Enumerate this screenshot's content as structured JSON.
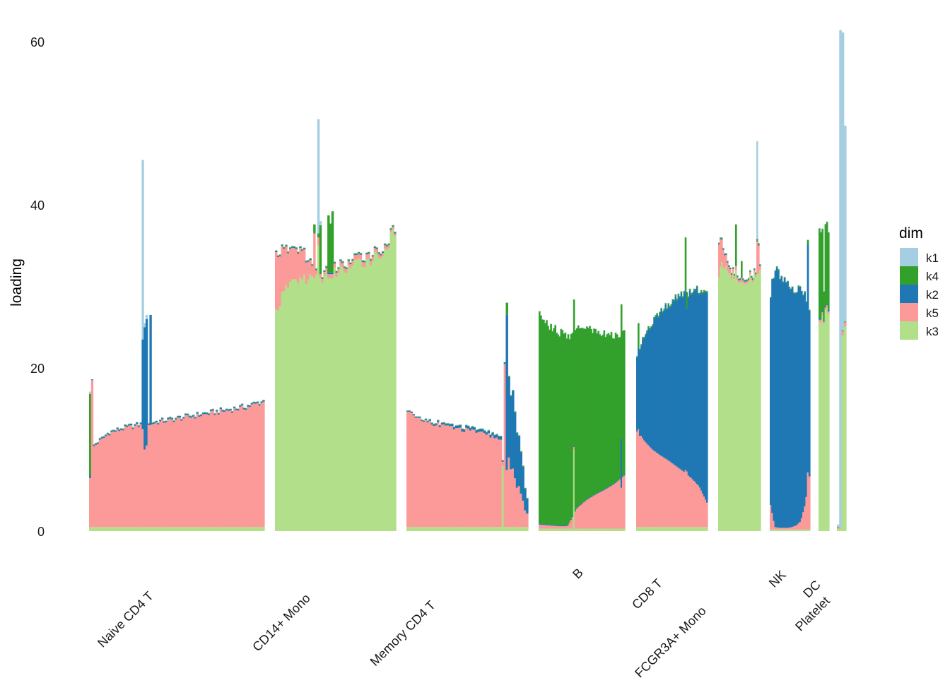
{
  "chart_data": {
    "type": "bar",
    "subtype": "stacked structure plot (one bar per sample, grouped by cell type)",
    "title": "",
    "xlabel": "",
    "ylabel": "loading",
    "ylim": [
      0,
      62
    ],
    "yticks": [
      0,
      20,
      40,
      60
    ],
    "grid": false,
    "legend": {
      "title": "dim",
      "placement": "right",
      "entries": [
        {
          "key": "k1",
          "label": "k1",
          "color": "#A6CEE3"
        },
        {
          "key": "k4",
          "label": "k4",
          "color": "#33A02C"
        },
        {
          "key": "k2",
          "label": "k2",
          "color": "#1F78B4"
        },
        {
          "key": "k5",
          "label": "k5",
          "color": "#FB9A99"
        },
        {
          "key": "k3",
          "label": "k3",
          "color": "#B2DF8A"
        }
      ]
    },
    "stack_order_bottom_to_top": [
      "k3",
      "k5",
      "k2",
      "k4",
      "k1"
    ],
    "groups": [
      {
        "name": "Naive CD4 T",
        "label_lines": [
          "Naive CD4 T"
        ],
        "n": 90,
        "k3": 0.5,
        "k5": [
          9.5,
          11.5,
          12.2,
          12.6,
          13.0,
          13.4,
          13.8,
          14.2,
          14.6,
          15.3
        ],
        "k2": 0.15,
        "k4": 0.05,
        "k1": 0.05,
        "spikes": [
          {
            "pos": 0.0,
            "k3": 0.5,
            "k5": 6.0,
            "k2": 0.3,
            "k4": 10.0,
            "k1": 0.3
          },
          {
            "pos": 0.01,
            "k3": 0.5,
            "k5": 18.0,
            "k2": 0.1,
            "k4": 0.0,
            "k1": 0.0
          },
          {
            "pos": 0.3,
            "k3": 0.5,
            "k5": 12.0,
            "k2": 11.0,
            "k4": 0.0,
            "k1": 22.0
          },
          {
            "pos": 0.315,
            "k3": 0.5,
            "k5": 9.5,
            "k2": 15.0,
            "k4": 0.0,
            "k1": 0.5
          },
          {
            "pos": 0.33,
            "k3": 0.5,
            "k5": 10.0,
            "k2": 15.5,
            "k4": 0.0,
            "k1": 0.5
          },
          {
            "pos": 0.345,
            "k3": 0.5,
            "k5": 12.5,
            "k2": 13.5,
            "k4": 0.0,
            "k1": 0.0
          }
        ]
      },
      {
        "name": "CD14+ Mono",
        "label_lines": [
          "CD14+ Mono"
        ],
        "n": 60,
        "k3": [
          27.0,
          30.5,
          31.0,
          30.8,
          31.5,
          32.0,
          32.6,
          33.3,
          34.0,
          36.5
        ],
        "k5": [
          7.0,
          4.0,
          3.5,
          0.5,
          0.5,
          0.5,
          0.6,
          0.6,
          0.4,
          0.3
        ],
        "k2": 0.1,
        "k4": 0.1,
        "k1": 0.05,
        "spikes": [
          {
            "pos": 0.33,
            "k3": 31.0,
            "k5": 5.5,
            "k2": 0.1,
            "k4": 1.0,
            "k1": 0.0
          },
          {
            "pos": 0.35,
            "k3": 35.0,
            "k5": 1.0,
            "k2": 0.0,
            "k4": 0.5,
            "k1": 14.0
          },
          {
            "pos": 0.365,
            "k3": 31.0,
            "k5": 0.5,
            "k2": 0.0,
            "k4": 6.0,
            "k1": 0.5
          },
          {
            "pos": 0.44,
            "k3": 31.0,
            "k5": 0.5,
            "k2": 0.2,
            "k4": 7.0,
            "k1": 0.0
          },
          {
            "pos": 0.455,
            "k3": 31.0,
            "k5": 0.5,
            "k2": 0.2,
            "k4": 6.0,
            "k1": 0.0
          },
          {
            "pos": 0.47,
            "k3": 31.0,
            "k5": 0.5,
            "k2": 0.2,
            "k4": 7.5,
            "k1": 0.0
          }
        ]
      },
      {
        "name": "Memory CD4 T",
        "label_lines": [
          "Memory CD4 T"
        ],
        "n": 60,
        "k3": 0.5,
        "k5": [
          14.0,
          13.2,
          12.7,
          12.3,
          12.0,
          11.7,
          11.3,
          10.8,
          10.0,
          9.0
        ],
        "k2": [
          0.1,
          0.1,
          0.2,
          0.2,
          0.3,
          0.3,
          0.3,
          0.4,
          0.5,
          0.6
        ],
        "k4": 0.05,
        "k1": 0.05,
        "tail_start": 0.81,
        "tail": {
          "k3": [
            0.5,
            0.5
          ],
          "k5": [
            10.0,
            1.5
          ],
          "k2": [
            13.0,
            2.0
          ],
          "k4": 0.1,
          "k1": 0.05
        },
        "spikes": [
          {
            "pos": 0.8,
            "k3": 8.0,
            "k5": 0.5,
            "k2": 0.2,
            "k4": 0.0,
            "k1": 0.0
          },
          {
            "pos": 0.815,
            "k3": 0.5,
            "k5": 20.0,
            "k2": 0.2,
            "k4": 0.0,
            "k1": 0.0
          },
          {
            "pos": 0.83,
            "k3": 0.5,
            "k5": 7.0,
            "k2": 19.0,
            "k4": 1.5,
            "k1": 0.0
          }
        ]
      },
      {
        "name": "B",
        "label_lines": [
          "B"
        ],
        "n": 60,
        "k3": 0.3,
        "k5": [
          0.5,
          0.4,
          0.3,
          0.3,
          2.5,
          3.5,
          4.2,
          4.8,
          5.5,
          6.5
        ],
        "k2": 0.1,
        "k4": [
          25.5,
          24.5,
          23.8,
          23.0,
          22.0,
          21.0,
          20.0,
          19.0,
          18.0,
          17.5
        ],
        "k1": 0.05,
        "spikes": [
          {
            "pos": 0.41,
            "k3": 10.0,
            "k5": 0.3,
            "k2": 0.1,
            "k4": 18.0,
            "k1": 0.0
          },
          {
            "pos": 0.97,
            "k3": 0.3,
            "k5": 5.0,
            "k2": 6.0,
            "k4": 16.5,
            "k1": 0.0
          }
        ]
      },
      {
        "name": "CD8 T",
        "label_lines": [
          "CD8 T"
        ],
        "n": 50,
        "k3": 0.5,
        "k5": [
          12.0,
          10.5,
          9.5,
          8.8,
          8.2,
          7.5,
          6.8,
          6.0,
          5.0,
          3.0
        ],
        "k2": [
          9.0,
          13.0,
          15.5,
          17.5,
          19.0,
          20.5,
          21.5,
          22.5,
          24.0,
          26.0
        ],
        "k4": 0.2,
        "k1": 0.05,
        "spikes": [
          {
            "pos": 0.02,
            "k3": 0.5,
            "k5": 12.0,
            "k2": 10.0,
            "k4": 3.0,
            "k1": 0.0
          },
          {
            "pos": 0.7,
            "k3": 0.5,
            "k5": 7.0,
            "k2": 22.0,
            "k4": 6.5,
            "k1": 0.0
          },
          {
            "pos": 0.72,
            "k3": 0.5,
            "k5": 6.8,
            "k2": 20.0,
            "k4": 2.0,
            "k1": 0.0
          }
        ]
      },
      {
        "name": "FCGR3A+ Mono",
        "label_lines": [
          "FCGR3A+ Mono"
        ],
        "n": 30,
        "k3": [
          31.0,
          33.0,
          32.0,
          31.0,
          30.5,
          30.3,
          30.5,
          31.0,
          31.3,
          31.5
        ],
        "k5": [
          4.0,
          2.0,
          0.8,
          0.5,
          0.3,
          0.3,
          0.3,
          0.3,
          0.3,
          0.5
        ],
        "k2": 0.1,
        "k4": 0.1,
        "k1": 0.05,
        "spikes": [
          {
            "pos": 0.4,
            "k3": 32.0,
            "k5": 0.5,
            "k2": 0.1,
            "k4": 5.0,
            "k1": 0.0
          },
          {
            "pos": 0.55,
            "k3": 30.5,
            "k5": 0.5,
            "k2": 0.1,
            "k4": 2.0,
            "k1": 0.0
          },
          {
            "pos": 0.93,
            "k3": 31.5,
            "k5": 4.0,
            "k2": 0.1,
            "k4": 0.2,
            "k1": 12.0
          },
          {
            "pos": 0.96,
            "k3": 31.5,
            "k5": 3.5,
            "k2": 0.1,
            "k4": 0.2,
            "k1": 0.0
          }
        ]
      },
      {
        "name": "NK",
        "label_lines": [
          "NK"
        ],
        "n": 26,
        "k3": 0.2,
        "k5": [
          3.0,
          0.3,
          0.2,
          0.2,
          0.2,
          0.3,
          0.5,
          1.0,
          3.0,
          6.5
        ],
        "k2": [
          26.0,
          32.0,
          31.0,
          30.0,
          30.0,
          29.0,
          29.0,
          28.5,
          26.0,
          20.0
        ],
        "k4": 0.1,
        "k1": 0.05,
        "spikes": [
          {
            "pos": 0.96,
            "k3": 0.2,
            "k5": 7.0,
            "k2": 28.0,
            "k4": 0.5,
            "k1": 0.0
          }
        ]
      },
      {
        "name": "DC",
        "label_lines": [
          "DC"
        ],
        "n": 7,
        "k3": [
          25.0,
          26.0,
          27.0,
          26.0,
          27.0,
          27.0,
          27.0
        ],
        "k5": [
          0.3,
          0.3,
          0.3,
          0.3,
          0.3,
          0.3,
          0.3
        ],
        "k2": 0.2,
        "k4": [
          11.0,
          10.5,
          10.0,
          3.5,
          10.0,
          10.0,
          9.5
        ],
        "k1": 0.05,
        "spikes": []
      },
      {
        "name": "Platelet",
        "label_lines": [
          "Platelet"
        ],
        "n": 4,
        "k3": [
          0.3,
          0.3,
          24.0,
          25.0
        ],
        "k5": [
          0.1,
          0.1,
          0.5,
          0.5
        ],
        "k2": 0.05,
        "k4": 0.05,
        "k1": [
          0.3,
          45.0,
          37.0,
          24.0
        ],
        "spikes": [
          {
            "pos": 0.33,
            "k3": 0.3,
            "k5": 0.1,
            "k2": 0.0,
            "k4": 0.0,
            "k1": 61.0
          }
        ]
      }
    ]
  }
}
